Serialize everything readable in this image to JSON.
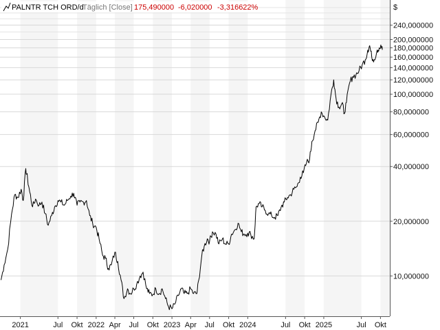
{
  "chart_data": {
    "type": "line",
    "title": "",
    "legend": {
      "instrument": "PALNTR TCH ORD/d",
      "mode": "Täglich [Close]",
      "last": "175,490000",
      "change": "-6,020000",
      "change_pct": "-3,316622%",
      "icon": "line-series-icon"
    },
    "currency_label": "$",
    "y_scale": "log",
    "ylim": [
      6.0,
      330.0
    ],
    "grid": true,
    "colors": {
      "line": "#000000",
      "negative": "#cc0000",
      "grid": "#d8d8d8",
      "band": "#f5f5f5"
    },
    "y_ticks": [
      {
        "value": 10,
        "label": "10,000000"
      },
      {
        "value": 20,
        "label": "20,000000"
      },
      {
        "value": 40,
        "label": "40,000000"
      },
      {
        "value": 60,
        "label": "60,000000"
      },
      {
        "value": 80,
        "label": "80,000000"
      },
      {
        "value": 100,
        "label": "100,000000"
      },
      {
        "value": 120,
        "label": "120,000000"
      },
      {
        "value": 140,
        "label": "140,000000"
      },
      {
        "value": 160,
        "label": "160,000000"
      },
      {
        "value": 180,
        "label": "180,000000"
      },
      {
        "value": 200,
        "label": "200,000000"
      },
      {
        "value": 240,
        "label": "240,000000"
      }
    ],
    "y_minor_gridlines": [
      220,
      260,
      280,
      300
    ],
    "xlim": [
      "2020-09-25",
      "2025-11-15"
    ],
    "x_ticks": [
      {
        "date": "2021-01-01",
        "label": "2021"
      },
      {
        "date": "2021-07-01",
        "label": "Jul"
      },
      {
        "date": "2021-10-01",
        "label": "Okt"
      },
      {
        "date": "2022-01-01",
        "label": "2022"
      },
      {
        "date": "2022-04-01",
        "label": "Apr"
      },
      {
        "date": "2022-07-01",
        "label": "Jul"
      },
      {
        "date": "2022-10-01",
        "label": "Okt"
      },
      {
        "date": "2023-01-01",
        "label": "2023"
      },
      {
        "date": "2023-04-01",
        "label": "Apr"
      },
      {
        "date": "2023-07-01",
        "label": "Jul"
      },
      {
        "date": "2023-10-01",
        "label": "Okt"
      },
      {
        "date": "2024-01-01",
        "label": "2024"
      },
      {
        "date": "2024-07-01",
        "label": "Jul"
      },
      {
        "date": "2024-10-01",
        "label": "Okt"
      },
      {
        "date": "2025-01-01",
        "label": "2025"
      },
      {
        "date": "2025-07-01",
        "label": "Jul"
      },
      {
        "date": "2025-10-01",
        "label": "Okt"
      }
    ],
    "series": [
      {
        "points": [
          [
            "2020-09-30",
            9.5
          ],
          [
            "2020-10-15",
            11.5
          ],
          [
            "2020-11-01",
            14.0
          ],
          [
            "2020-11-20",
            22.0
          ],
          [
            "2020-12-05",
            28.0
          ],
          [
            "2020-12-20",
            27.0
          ],
          [
            "2021-01-05",
            30.0
          ],
          [
            "2021-01-15",
            26.0
          ],
          [
            "2021-01-27",
            39.0
          ],
          [
            "2021-02-05",
            34.0
          ],
          [
            "2021-02-15",
            29.0
          ],
          [
            "2021-03-01",
            24.0
          ],
          [
            "2021-03-15",
            26.5
          ],
          [
            "2021-04-01",
            24.5
          ],
          [
            "2021-04-15",
            25.5
          ],
          [
            "2021-05-01",
            22.0
          ],
          [
            "2021-05-15",
            19.0
          ],
          [
            "2021-06-01",
            21.5
          ],
          [
            "2021-06-15",
            24.0
          ],
          [
            "2021-07-01",
            26.0
          ],
          [
            "2021-07-15",
            25.5
          ],
          [
            "2021-08-01",
            24.5
          ],
          [
            "2021-08-15",
            26.0
          ],
          [
            "2021-09-01",
            27.5
          ],
          [
            "2021-09-15",
            28.5
          ],
          [
            "2021-10-01",
            24.5
          ],
          [
            "2021-10-15",
            25.5
          ],
          [
            "2021-11-01",
            25.5
          ],
          [
            "2021-11-15",
            26.0
          ],
          [
            "2021-12-01",
            21.5
          ],
          [
            "2021-12-15",
            19.5
          ],
          [
            "2022-01-01",
            18.5
          ],
          [
            "2022-01-15",
            16.0
          ],
          [
            "2022-02-01",
            13.0
          ],
          [
            "2022-02-15",
            12.5
          ],
          [
            "2022-03-01",
            11.0
          ],
          [
            "2022-03-15",
            11.5
          ],
          [
            "2022-04-01",
            13.5
          ],
          [
            "2022-04-15",
            12.0
          ],
          [
            "2022-05-01",
            9.5
          ],
          [
            "2022-05-15",
            7.5
          ],
          [
            "2022-06-01",
            8.5
          ],
          [
            "2022-06-15",
            8.0
          ],
          [
            "2022-07-01",
            8.5
          ],
          [
            "2022-07-15",
            9.0
          ],
          [
            "2022-08-01",
            10.0
          ],
          [
            "2022-08-15",
            10.5
          ],
          [
            "2022-09-01",
            8.5
          ],
          [
            "2022-09-15",
            8.0
          ],
          [
            "2022-10-01",
            7.9
          ],
          [
            "2022-10-15",
            8.5
          ],
          [
            "2022-11-01",
            8.0
          ],
          [
            "2022-11-15",
            8.5
          ],
          [
            "2022-12-01",
            7.5
          ],
          [
            "2022-12-15",
            6.8
          ],
          [
            "2023-01-01",
            6.6
          ],
          [
            "2023-01-15",
            7.0
          ],
          [
            "2023-02-01",
            7.8
          ],
          [
            "2023-02-15",
            8.5
          ],
          [
            "2023-03-01",
            8.0
          ],
          [
            "2023-03-15",
            8.0
          ],
          [
            "2023-04-01",
            8.5
          ],
          [
            "2023-04-15",
            8.0
          ],
          [
            "2023-05-01",
            8.0
          ],
          [
            "2023-05-10",
            9.5
          ],
          [
            "2023-05-25",
            13.0
          ],
          [
            "2023-06-05",
            14.5
          ],
          [
            "2023-06-20",
            16.0
          ],
          [
            "2023-07-01",
            15.5
          ],
          [
            "2023-07-15",
            17.5
          ],
          [
            "2023-08-01",
            17.0
          ],
          [
            "2023-08-15",
            15.0
          ],
          [
            "2023-09-01",
            16.0
          ],
          [
            "2023-09-15",
            15.0
          ],
          [
            "2023-10-01",
            15.0
          ],
          [
            "2023-10-15",
            17.0
          ],
          [
            "2023-11-01",
            18.0
          ],
          [
            "2023-11-15",
            19.5
          ],
          [
            "2023-12-01",
            17.5
          ],
          [
            "2023-12-15",
            17.0
          ],
          [
            "2024-01-01",
            17.2
          ],
          [
            "2024-01-15",
            17.0
          ],
          [
            "2024-02-01",
            16.0
          ],
          [
            "2024-02-10",
            24.0
          ],
          [
            "2024-02-25",
            25.0
          ],
          [
            "2024-03-10",
            24.0
          ],
          [
            "2024-03-25",
            23.0
          ],
          [
            "2024-04-10",
            22.0
          ],
          [
            "2024-04-25",
            21.5
          ],
          [
            "2024-05-10",
            21.0
          ],
          [
            "2024-05-25",
            21.5
          ],
          [
            "2024-06-10",
            24.0
          ],
          [
            "2024-06-25",
            25.5
          ],
          [
            "2024-07-10",
            27.0
          ],
          [
            "2024-07-25",
            28.0
          ],
          [
            "2024-08-10",
            30.0
          ],
          [
            "2024-08-25",
            31.0
          ],
          [
            "2024-09-10",
            35.0
          ],
          [
            "2024-09-25",
            37.0
          ],
          [
            "2024-10-10",
            42.0
          ],
          [
            "2024-10-25",
            44.0
          ],
          [
            "2024-11-05",
            55.0
          ],
          [
            "2024-11-20",
            63.0
          ],
          [
            "2024-12-05",
            70.0
          ],
          [
            "2024-12-20",
            80.0
          ],
          [
            "2025-01-05",
            75.0
          ],
          [
            "2025-01-20",
            72.0
          ],
          [
            "2025-02-05",
            100.0
          ],
          [
            "2025-02-18",
            120.0
          ],
          [
            "2025-03-01",
            95.0
          ],
          [
            "2025-03-15",
            85.0
          ],
          [
            "2025-04-01",
            90.0
          ],
          [
            "2025-04-08",
            78.0
          ],
          [
            "2025-04-20",
            90.0
          ],
          [
            "2025-05-05",
            115.0
          ],
          [
            "2025-05-20",
            125.0
          ],
          [
            "2025-06-05",
            128.0
          ],
          [
            "2025-06-20",
            135.0
          ],
          [
            "2025-07-05",
            145.0
          ],
          [
            "2025-07-20",
            155.0
          ],
          [
            "2025-08-01",
            175.0
          ],
          [
            "2025-08-10",
            185.0
          ],
          [
            "2025-08-20",
            160.0
          ],
          [
            "2025-09-01",
            155.0
          ],
          [
            "2025-09-15",
            175.0
          ],
          [
            "2025-09-25",
            180.0
          ],
          [
            "2025-10-05",
            182.0
          ],
          [
            "2025-10-10",
            175.49
          ]
        ]
      }
    ]
  }
}
